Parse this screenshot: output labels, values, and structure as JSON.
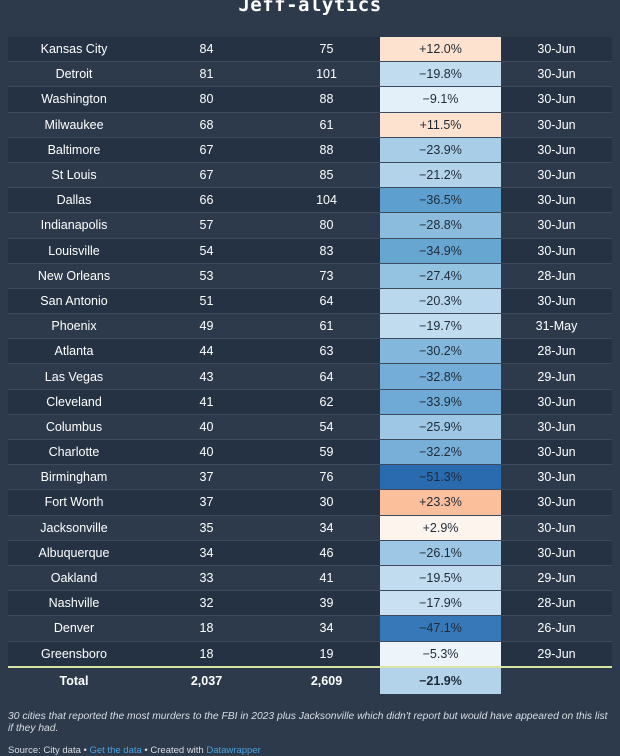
{
  "title": "Jeff-alytics",
  "rows": [
    {
      "city": "Kansas City",
      "v2024": "84",
      "v2023": "75",
      "change": "+12.0%",
      "date": "30-Jun",
      "color": "#fde2d0"
    },
    {
      "city": "Detroit",
      "v2024": "81",
      "v2023": "101",
      "change": "−19.8%",
      "date": "30-Jun",
      "color": "#c1dcef"
    },
    {
      "city": "Washington",
      "v2024": "80",
      "v2023": "88",
      "change": "−9.1%",
      "date": "30-Jun",
      "color": "#e3f0f9"
    },
    {
      "city": "Milwaukee",
      "v2024": "68",
      "v2023": "61",
      "change": "+11.5%",
      "date": "30-Jun",
      "color": "#fde2d0"
    },
    {
      "city": "Baltimore",
      "v2024": "67",
      "v2023": "88",
      "change": "−23.9%",
      "date": "30-Jun",
      "color": "#a8cde6"
    },
    {
      "city": "St Louis",
      "v2024": "67",
      "v2023": "85",
      "change": "−21.2%",
      "date": "30-Jun",
      "color": "#b3d3ea"
    },
    {
      "city": "Dallas",
      "v2024": "66",
      "v2023": "104",
      "change": "−36.5%",
      "date": "30-Jun",
      "color": "#5d9fce"
    },
    {
      "city": "Indianapolis",
      "v2024": "57",
      "v2023": "80",
      "change": "−28.8%",
      "date": "30-Jun",
      "color": "#8bbcde"
    },
    {
      "city": "Louisville",
      "v2024": "54",
      "v2023": "83",
      "change": "−34.9%",
      "date": "30-Jun",
      "color": "#68a6d2"
    },
    {
      "city": "New Orleans",
      "v2024": "53",
      "v2023": "73",
      "change": "−27.4%",
      "date": "28-Jun",
      "color": "#94c2e1"
    },
    {
      "city": "San Antonio",
      "v2024": "51",
      "v2023": "64",
      "change": "−20.3%",
      "date": "30-Jun",
      "color": "#bad8ed"
    },
    {
      "city": "Phoenix",
      "v2024": "49",
      "v2023": "61",
      "change": "−19.7%",
      "date": "31-May",
      "color": "#c1dcef"
    },
    {
      "city": "Atlanta",
      "v2024": "44",
      "v2023": "63",
      "change": "−30.2%",
      "date": "28-Jun",
      "color": "#83b8dc"
    },
    {
      "city": "Las Vegas",
      "v2024": "43",
      "v2023": "64",
      "change": "−32.8%",
      "date": "29-Jun",
      "color": "#74add7"
    },
    {
      "city": "Cleveland",
      "v2024": "41",
      "v2023": "62",
      "change": "−33.9%",
      "date": "30-Jun",
      "color": "#6eaad5"
    },
    {
      "city": "Columbus",
      "v2024": "40",
      "v2023": "54",
      "change": "−25.9%",
      "date": "30-Jun",
      "color": "#9dc7e4"
    },
    {
      "city": "Charlotte",
      "v2024": "40",
      "v2023": "59",
      "change": "−32.2%",
      "date": "30-Jun",
      "color": "#78afd8"
    },
    {
      "city": "Birmingham",
      "v2024": "37",
      "v2023": "76",
      "change": "−51.3%",
      "date": "30-Jun",
      "color": "#2a6aae"
    },
    {
      "city": "Fort Worth",
      "v2024": "37",
      "v2023": "30",
      "change": "+23.3%",
      "date": "30-Jun",
      "color": "#fbbf9c"
    },
    {
      "city": "Jacksonville",
      "v2024": "35",
      "v2023": "34",
      "change": "+2.9%",
      "date": "30-Jun",
      "color": "#fdf4ee"
    },
    {
      "city": "Albuquerque",
      "v2024": "34",
      "v2023": "46",
      "change": "−26.1%",
      "date": "30-Jun",
      "color": "#9dc7e4"
    },
    {
      "city": "Oakland",
      "v2024": "33",
      "v2023": "41",
      "change": "−19.5%",
      "date": "29-Jun",
      "color": "#c1dcef"
    },
    {
      "city": "Nashville",
      "v2024": "32",
      "v2023": "39",
      "change": "−17.9%",
      "date": "28-Jun",
      "color": "#c8e0f1"
    },
    {
      "city": "Denver",
      "v2024": "18",
      "v2023": "34",
      "change": "−47.1%",
      "date": "26-Jun",
      "color": "#3778b8"
    },
    {
      "city": "Greensboro",
      "v2024": "18",
      "v2023": "19",
      "change": "−5.3%",
      "date": "29-Jun",
      "color": "#edf5fb"
    }
  ],
  "total": {
    "label": "Total",
    "v2024": "2,037",
    "v2023": "2,609",
    "change": "−21.9%",
    "color": "#b3d3ea"
  },
  "notes": "30 cities that reported the most murders to the FBI in 2023 plus Jacksonville which didn't report but would have appeared on this list if they had.",
  "source": {
    "prefix": "Source: City data • ",
    "get_data": "Get the data",
    "mid": " • Created with ",
    "created_with": "Datawrapper"
  }
}
